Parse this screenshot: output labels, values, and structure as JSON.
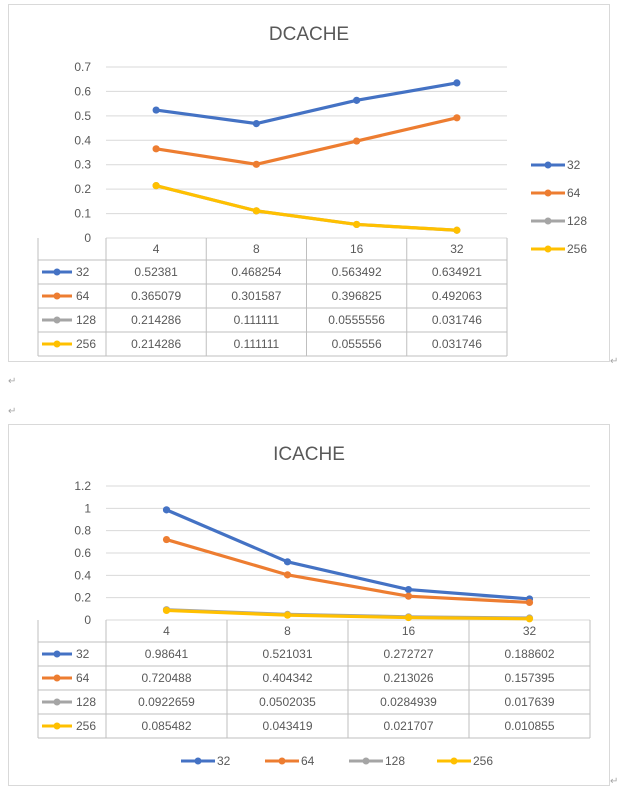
{
  "chart_data": [
    {
      "type": "line",
      "title": "DCACHE",
      "categories": [
        "4",
        "8",
        "16",
        "32"
      ],
      "ylim": [
        0,
        0.7
      ],
      "yticks": [
        "0",
        "0.1",
        "0.2",
        "0.3",
        "0.4",
        "0.5",
        "0.6",
        "0.7"
      ],
      "grid": true,
      "legend": "right",
      "data_table": true,
      "series": [
        {
          "name": "32",
          "color": "#4472c4",
          "values": [
            0.52381,
            0.468254,
            0.563492,
            0.634921
          ],
          "labels": [
            "0.52381",
            "0.468254",
            "0.563492",
            "0.634921"
          ]
        },
        {
          "name": "64",
          "color": "#ed7d31",
          "values": [
            0.365079,
            0.301587,
            0.396825,
            0.492063
          ],
          "labels": [
            "0.365079",
            "0.301587",
            "0.396825",
            "0.492063"
          ]
        },
        {
          "name": "128",
          "color": "#a5a5a5",
          "values": [
            0.214286,
            0.111111,
            0.0555556,
            0.031746
          ],
          "labels": [
            "0.214286",
            "0.111111",
            "0.0555556",
            "0.031746"
          ]
        },
        {
          "name": "256",
          "color": "#ffc000",
          "values": [
            0.214286,
            0.111111,
            0.055556,
            0.031746
          ],
          "labels": [
            "0.214286",
            "0.111111",
            "0.055556",
            "0.031746"
          ]
        }
      ]
    },
    {
      "type": "line",
      "title": "ICACHE",
      "categories": [
        "4",
        "8",
        "16",
        "32"
      ],
      "ylim": [
        0,
        1.2
      ],
      "yticks": [
        "0",
        "0.2",
        "0.4",
        "0.6",
        "0.8",
        "1",
        "1.2"
      ],
      "grid": true,
      "legend": "bottom",
      "data_table": true,
      "series": [
        {
          "name": "32",
          "color": "#4472c4",
          "values": [
            0.98641,
            0.521031,
            0.272727,
            0.188602
          ],
          "labels": [
            "0.98641",
            "0.521031",
            "0.272727",
            "0.188602"
          ]
        },
        {
          "name": "64",
          "color": "#ed7d31",
          "values": [
            0.720488,
            0.404342,
            0.213026,
            0.157395
          ],
          "labels": [
            "0.720488",
            "0.404342",
            "0.213026",
            "0.157395"
          ]
        },
        {
          "name": "128",
          "color": "#a5a5a5",
          "values": [
            0.0922659,
            0.0502035,
            0.0284939,
            0.017639
          ],
          "labels": [
            "0.0922659",
            "0.0502035",
            "0.0284939",
            "0.017639"
          ]
        },
        {
          "name": "256",
          "color": "#ffc000",
          "values": [
            0.085482,
            0.043419,
            0.021707,
            0.010855
          ],
          "labels": [
            "0.085482",
            "0.043419",
            "0.021707",
            "0.010855"
          ]
        }
      ]
    }
  ]
}
